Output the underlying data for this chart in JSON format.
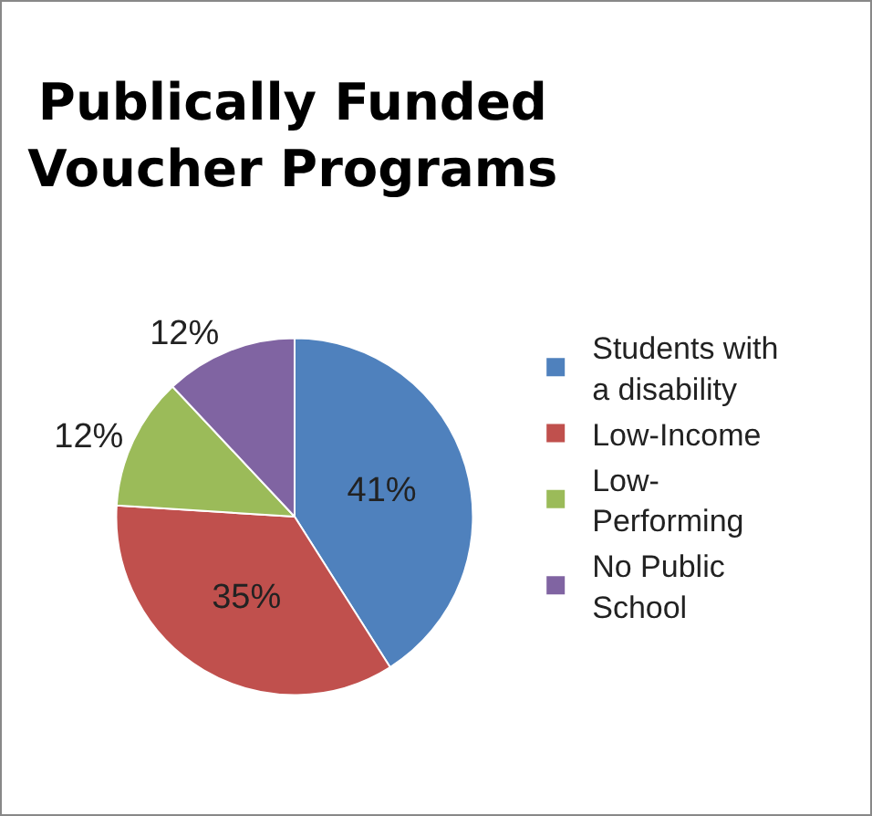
{
  "chart_data": {
    "type": "pie",
    "title": "Publically Funded Voucher Programs",
    "categories": [
      "Students with a disability",
      "Low-Income",
      "Low-Performing",
      "No Public School"
    ],
    "values": [
      41,
      35,
      12,
      12
    ],
    "value_labels": [
      "41%",
      "35%",
      "12%",
      "12%"
    ],
    "colors": [
      "#4f81bd",
      "#c0504d",
      "#9bbb59",
      "#8064a2"
    ],
    "legend": "right"
  }
}
